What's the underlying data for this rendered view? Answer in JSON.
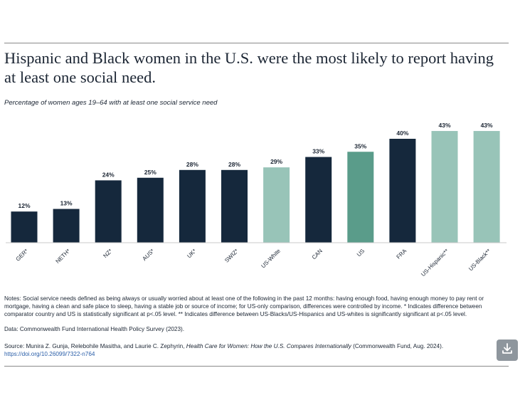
{
  "title": "Hispanic and Black women in the U.S. were the most likely to report having at least one social need.",
  "subtitle": "Percentage of women ages 19–64 with at least one social service need",
  "notes": "Notes: Social service needs defined as being always or usually worried about at least one of the following in the past 12 months: having enough food, having enough money to pay rent or mortgage, having a clean and safe place to sleep, having a stable job or source of income; for US-only comparison, differences were controlled by income. * Indicates difference between comparator country and US is statistically significant at p<.05 level. ** Indicates difference between US-Blacks/US-Hispanics and US-whites is significantly significant at p<.05 level.",
  "data_source": "Data: Commonwealth Fund International Health Policy Survey (2023).",
  "source": {
    "prefix": "Source: Munira Z. Gunja, Relebohile Masitha, and Laurie C. Zephyrin, ",
    "book": "Health Care for Women: How the U.S. Compares Internationally",
    "suffix": " (Commonwealth Fund, Aug. 2024).",
    "doi": "https://doi.org/10.26099/7322-n764"
  },
  "download_icon": "download-icon",
  "colors": {
    "dark": "#15283c",
    "us": "#5a9c8a",
    "us_subgroup": "#98c4b8",
    "download_bg": "#8e969d"
  },
  "chart_data": {
    "type": "bar",
    "title": "Hispanic and Black women in the U.S. were the most likely to report having at least one social need.",
    "subtitle": "Percentage of women ages 19–64 with at least one social service need",
    "xlabel": "",
    "ylabel": "",
    "ylim": [
      0,
      45
    ],
    "grid": false,
    "categories": [
      "GER*",
      "NETH*",
      "NZ*",
      "AUS*",
      "UK*",
      "SWIZ*",
      "US-White",
      "CAN",
      "US",
      "FRA",
      "US-Hispanic**",
      "US-Black**"
    ],
    "values": [
      12,
      13,
      24,
      25,
      28,
      28,
      29,
      33,
      35,
      40,
      43,
      43
    ],
    "data_labels": [
      "12%",
      "13%",
      "24%",
      "25%",
      "28%",
      "28%",
      "29%",
      "33%",
      "35%",
      "40%",
      "43%",
      "43%"
    ],
    "bar_colors": [
      "#15283c",
      "#15283c",
      "#15283c",
      "#15283c",
      "#15283c",
      "#15283c",
      "#98c4b8",
      "#15283c",
      "#5a9c8a",
      "#15283c",
      "#98c4b8",
      "#98c4b8"
    ]
  }
}
